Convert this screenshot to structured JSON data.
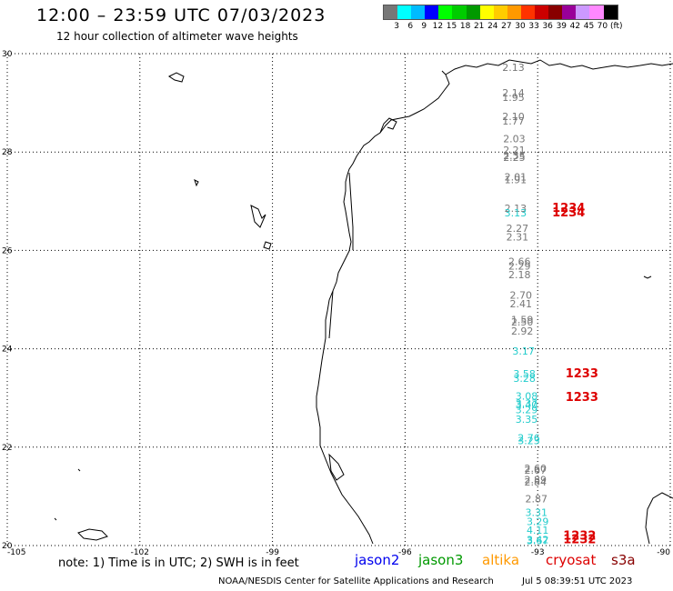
{
  "header": {
    "title": "12:00 – 23:59 UTC 07/03/2023",
    "subtitle": "12 hour collection of altimeter wave heights"
  },
  "legend": {
    "colors": [
      "#777777",
      "#00ffff",
      "#00bbff",
      "#0000ff",
      "#00ff00",
      "#00cc00",
      "#009900",
      "#ffff00",
      "#ffcc00",
      "#ff9900",
      "#ff3300",
      "#cc0000",
      "#880000",
      "#990099",
      "#cc99ff",
      "#ff88ff",
      "#000000"
    ],
    "labels": [
      "3",
      "6",
      "9",
      "12",
      "15",
      "18",
      "21",
      "24",
      "27",
      "30",
      "33",
      "36",
      "39",
      "42",
      "45",
      "70 (ft)"
    ]
  },
  "map": {
    "lon_labels": [
      "-105",
      "-102",
      "-99",
      "-96",
      "-93",
      "-90"
    ],
    "lat_labels": [
      "30",
      "28",
      "26",
      "24",
      "22",
      "20"
    ],
    "lon_range": [
      -105,
      -90
    ],
    "lat_range": [
      20,
      30
    ],
    "grid": "dotted"
  },
  "wave_heights": [
    {
      "value": "2.13",
      "lat": 29.65,
      "lon": -93.55,
      "color": "#777777"
    },
    {
      "value": "2.14",
      "lat": 29.13,
      "lon": -93.55,
      "color": "#777777"
    },
    {
      "value": "1.95",
      "lat": 29.04,
      "lon": -93.55,
      "color": "#777777"
    },
    {
      "value": "2.10",
      "lat": 28.65,
      "lon": -93.55,
      "color": "#777777"
    },
    {
      "value": "1.77",
      "lat": 28.56,
      "lon": -93.55,
      "color": "#777777"
    },
    {
      "value": "2.03",
      "lat": 28.2,
      "lon": -93.53,
      "color": "#777777"
    },
    {
      "value": "2.21",
      "lat": 27.97,
      "lon": -93.53,
      "color": "#777777"
    },
    {
      "value": "2.35",
      "lat": 27.86,
      "lon": -93.53,
      "color": "#777777"
    },
    {
      "value": "2.25",
      "lat": 27.82,
      "lon": -93.53,
      "color": "#777777"
    },
    {
      "value": "2.01",
      "lat": 27.42,
      "lon": -93.5,
      "color": "#777777"
    },
    {
      "value": "1.91",
      "lat": 27.37,
      "lon": -93.5,
      "color": "#777777"
    },
    {
      "value": "2.13",
      "lat": 26.78,
      "lon": -93.5,
      "color": "#777777"
    },
    {
      "value": "3.13",
      "lat": 26.69,
      "lon": -93.5,
      "color": "#22cccc"
    },
    {
      "value": "2.27",
      "lat": 26.38,
      "lon": -93.46,
      "color": "#777777"
    },
    {
      "value": "2.31",
      "lat": 26.2,
      "lon": -93.46,
      "color": "#777777"
    },
    {
      "value": "2.66",
      "lat": 25.7,
      "lon": -93.41,
      "color": "#777777"
    },
    {
      "value": "2.29",
      "lat": 25.61,
      "lon": -93.41,
      "color": "#777777"
    },
    {
      "value": "2.18",
      "lat": 25.43,
      "lon": -93.41,
      "color": "#777777"
    },
    {
      "value": "2.70",
      "lat": 25.02,
      "lon": -93.38,
      "color": "#777777"
    },
    {
      "value": "2.41",
      "lat": 24.84,
      "lon": -93.38,
      "color": "#777777"
    },
    {
      "value": "1.59",
      "lat": 24.52,
      "lon": -93.35,
      "color": "#777777"
    },
    {
      "value": "2.50",
      "lat": 24.47,
      "lon": -93.35,
      "color": "#777777"
    },
    {
      "value": "2.92",
      "lat": 24.29,
      "lon": -93.35,
      "color": "#777777"
    },
    {
      "value": "3.17",
      "lat": 23.88,
      "lon": -93.32,
      "color": "#22cccc"
    },
    {
      "value": "3.58",
      "lat": 23.42,
      "lon": -93.3,
      "color": "#22cccc"
    },
    {
      "value": "3.28",
      "lat": 23.33,
      "lon": -93.3,
      "color": "#22cccc"
    },
    {
      "value": "3.08",
      "lat": 22.97,
      "lon": -93.25,
      "color": "#22cccc"
    },
    {
      "value": "3.37",
      "lat": 22.82,
      "lon": -93.25,
      "color": "#22cccc"
    },
    {
      "value": "3.40",
      "lat": 22.79,
      "lon": -93.25,
      "color": "#22cccc"
    },
    {
      "value": "3.29",
      "lat": 22.69,
      "lon": -93.25,
      "color": "#22cccc"
    },
    {
      "value": "3.35",
      "lat": 22.5,
      "lon": -93.25,
      "color": "#22cccc"
    },
    {
      "value": "2.76",
      "lat": 22.12,
      "lon": -93.2,
      "color": "#22cccc"
    },
    {
      "value": "3.23",
      "lat": 22.06,
      "lon": -93.2,
      "color": "#22cccc"
    },
    {
      "value": "2.60",
      "lat": 21.5,
      "lon": -93.05,
      "color": "#777777"
    },
    {
      "value": "2.67",
      "lat": 21.46,
      "lon": -93.05,
      "color": "#777777"
    },
    {
      "value": "2.89",
      "lat": 21.27,
      "lon": -93.05,
      "color": "#777777"
    },
    {
      "value": "2.84",
      "lat": 21.22,
      "lon": -93.05,
      "color": "#777777"
    },
    {
      "value": "2.87",
      "lat": 20.88,
      "lon": -93.03,
      "color": "#777777"
    },
    {
      "value": "3.31",
      "lat": 20.6,
      "lon": -93.03,
      "color": "#22cccc"
    },
    {
      "value": "3.29",
      "lat": 20.42,
      "lon": -93.0,
      "color": "#22cccc"
    },
    {
      "value": "4.11",
      "lat": 20.24,
      "lon": -93.0,
      "color": "#22cccc"
    },
    {
      "value": "3.42",
      "lat": 20.05,
      "lon": -93.0,
      "color": "#22cccc"
    },
    {
      "value": "3.67",
      "lat": 20.03,
      "lon": -93.0,
      "color": "#22cccc"
    }
  ],
  "pass_times": [
    {
      "value": "1234",
      "lat": 26.78,
      "lon": -92.3,
      "color": "#dd0000"
    },
    {
      "value": "1234",
      "lat": 26.69,
      "lon": -92.3,
      "color": "#dd0000"
    },
    {
      "value": "1233",
      "lat": 23.42,
      "lon": -92.0,
      "color": "#dd0000"
    },
    {
      "value": "1233",
      "lat": 22.94,
      "lon": -92.0,
      "color": "#dd0000"
    },
    {
      "value": "1232",
      "lat": 20.12,
      "lon": -92.05,
      "color": "#dd0000"
    },
    {
      "value": "1232",
      "lat": 20.05,
      "lon": -92.05,
      "color": "#dd0000"
    }
  ],
  "footer": {
    "note": "note: 1) Time is in UTC; 2) SWH is in feet",
    "satellites": [
      {
        "name": "jason2",
        "color": "#0000ee"
      },
      {
        "name": "jason3",
        "color": "#009900"
      },
      {
        "name": "altika",
        "color": "#ff9900"
      },
      {
        "name": "cryosat",
        "color": "#dd0000"
      },
      {
        "name": "s3a",
        "color": "#880000"
      }
    ],
    "credit": "NOAA/NESDIS Center for Satellite Applications and Research",
    "timestamp": "Jul 5 08:39:51 UTC 2023"
  }
}
